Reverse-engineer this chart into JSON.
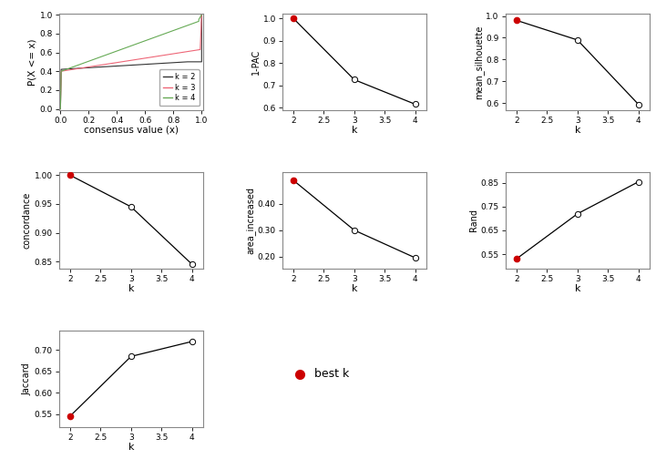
{
  "k_values": [
    2,
    3,
    4
  ],
  "pac_values": [
    1.0,
    0.725,
    0.615
  ],
  "silhouette_values": [
    0.98,
    0.89,
    0.595
  ],
  "concordance_values": [
    1.0,
    0.945,
    0.845
  ],
  "area_increased_values": [
    0.49,
    0.3,
    0.195
  ],
  "rand_values": [
    0.53,
    0.72,
    0.855
  ],
  "jaccard_values": [
    0.545,
    0.685,
    0.72
  ],
  "best_k": 2,
  "line_color": "#000000",
  "best_marker_color": "#cc0000",
  "other_marker_color": "white",
  "marker_edge_color": "#000000",
  "ecdf_k2_color": "#333333",
  "ecdf_k3_color": "#ee6677",
  "ecdf_k4_color": "#66aa55",
  "bg_color": "white",
  "fig_bg_color": "white"
}
